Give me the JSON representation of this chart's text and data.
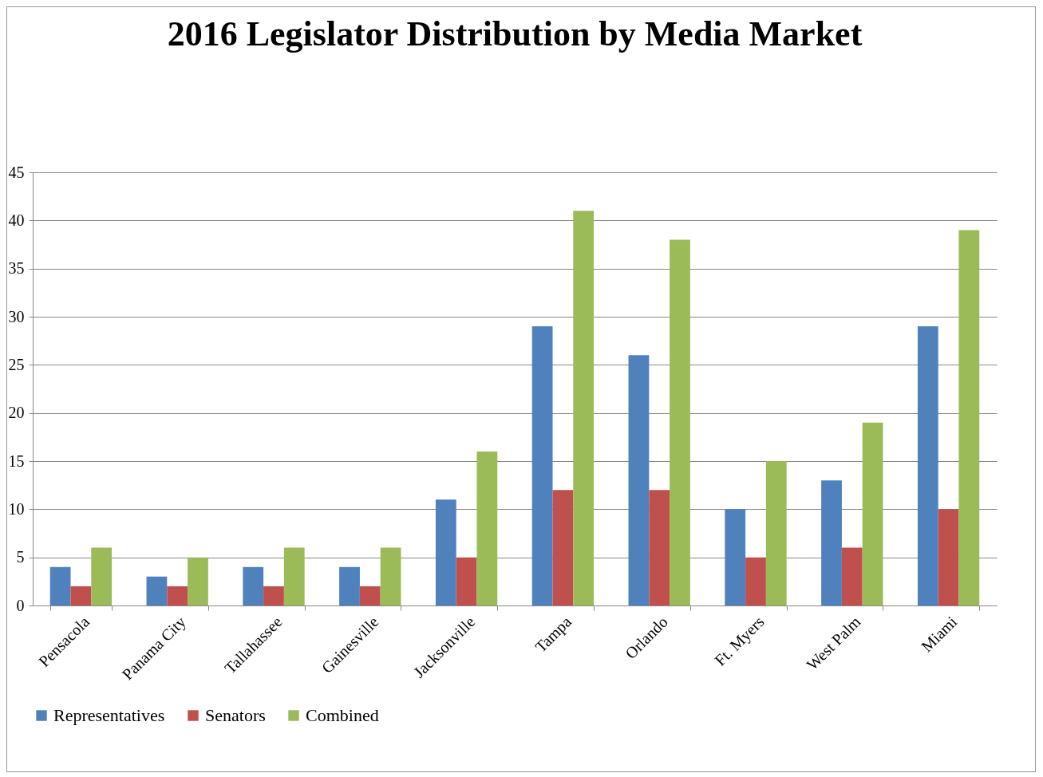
{
  "chart_data": {
    "type": "bar",
    "title": "2016 Legislator Distribution by Media Market",
    "categories": [
      "Pensacola",
      "Panama City",
      "Tallahassee",
      "Gainesville",
      "Jacksonville",
      "Tampa",
      "Orlando",
      "Ft. Myers",
      "West Palm",
      "Miami"
    ],
    "series": [
      {
        "name": "Representatives",
        "color": "#4f81bd",
        "values": [
          4,
          3,
          4,
          4,
          11,
          29,
          26,
          10,
          13,
          29
        ]
      },
      {
        "name": "Senators",
        "color": "#c0504d",
        "values": [
          2,
          2,
          2,
          2,
          5,
          12,
          12,
          5,
          6,
          10
        ]
      },
      {
        "name": "Combined",
        "color": "#9bbb59",
        "values": [
          6,
          5,
          6,
          6,
          16,
          41,
          38,
          15,
          19,
          39
        ]
      }
    ],
    "ylim": [
      0,
      45
    ],
    "yticks": [
      0,
      5,
      10,
      15,
      20,
      25,
      30,
      35,
      40,
      45
    ],
    "grid": "y",
    "legend": "bottom"
  }
}
